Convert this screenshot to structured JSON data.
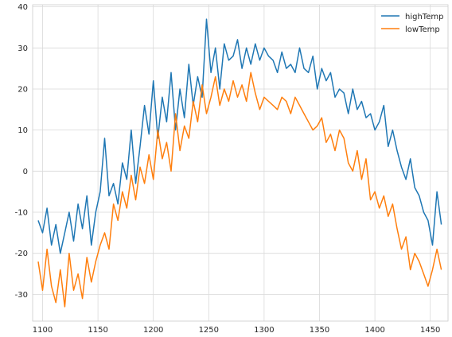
{
  "chart_data": {
    "type": "line",
    "xlim": [
      1091,
      1466
    ],
    "ylim": [
      -36.5,
      40.5
    ],
    "xticks": [
      1100,
      1150,
      1200,
      1250,
      1300,
      1350,
      1400,
      1450
    ],
    "yticks": [
      -30,
      -20,
      -10,
      0,
      10,
      20,
      30,
      40
    ],
    "grid": true,
    "legend_position": "top-right",
    "series": [
      {
        "name": "highTemp",
        "color": "#1f77b4",
        "x": [
          1096,
          1100,
          1104,
          1108,
          1112,
          1116,
          1120,
          1124,
          1128,
          1132,
          1136,
          1140,
          1144,
          1148,
          1152,
          1156,
          1160,
          1164,
          1168,
          1172,
          1176,
          1180,
          1184,
          1188,
          1192,
          1196,
          1200,
          1204,
          1208,
          1212,
          1216,
          1220,
          1224,
          1228,
          1232,
          1236,
          1240,
          1244,
          1248,
          1252,
          1256,
          1260,
          1264,
          1268,
          1272,
          1276,
          1280,
          1284,
          1288,
          1292,
          1296,
          1300,
          1304,
          1308,
          1312,
          1316,
          1320,
          1324,
          1328,
          1332,
          1336,
          1340,
          1344,
          1348,
          1352,
          1356,
          1360,
          1364,
          1368,
          1372,
          1376,
          1380,
          1384,
          1388,
          1392,
          1396,
          1400,
          1404,
          1408,
          1412,
          1416,
          1420,
          1424,
          1428,
          1432,
          1436,
          1440,
          1444,
          1448,
          1452,
          1456,
          1460
        ],
        "y": [
          -12,
          -15,
          -9,
          -18,
          -13,
          -20,
          -15,
          -10,
          -17,
          -8,
          -14,
          -6,
          -18,
          -10,
          -5,
          8,
          -6,
          -3,
          -8,
          2,
          -2,
          10,
          -3,
          6,
          16,
          9,
          22,
          8,
          18,
          12,
          24,
          10,
          20,
          13,
          26,
          16,
          23,
          18,
          37,
          24,
          30,
          20,
          31,
          27,
          28,
          32,
          25,
          30,
          26,
          31,
          27,
          30,
          28,
          27,
          24,
          29,
          25,
          26,
          24,
          30,
          25,
          24,
          28,
          20,
          25,
          22,
          24,
          18,
          20,
          19,
          14,
          20,
          15,
          17,
          13,
          14,
          10,
          12,
          16,
          6,
          10,
          5,
          1,
          -2,
          3,
          -4,
          -6,
          -10,
          -12,
          -18,
          -5,
          -13
        ]
      },
      {
        "name": "lowTemp",
        "color": "#ff7f0e",
        "x": [
          1096,
          1100,
          1104,
          1108,
          1112,
          1116,
          1120,
          1124,
          1128,
          1132,
          1136,
          1140,
          1144,
          1148,
          1152,
          1156,
          1160,
          1164,
          1168,
          1172,
          1176,
          1180,
          1184,
          1188,
          1192,
          1196,
          1200,
          1204,
          1208,
          1212,
          1216,
          1220,
          1224,
          1228,
          1232,
          1236,
          1240,
          1244,
          1248,
          1252,
          1256,
          1260,
          1264,
          1268,
          1272,
          1276,
          1280,
          1284,
          1288,
          1292,
          1296,
          1300,
          1304,
          1308,
          1312,
          1316,
          1320,
          1324,
          1328,
          1332,
          1336,
          1340,
          1344,
          1348,
          1352,
          1356,
          1360,
          1364,
          1368,
          1372,
          1376,
          1380,
          1384,
          1388,
          1392,
          1396,
          1400,
          1404,
          1408,
          1412,
          1416,
          1420,
          1424,
          1428,
          1432,
          1436,
          1440,
          1444,
          1448,
          1452,
          1456,
          1460
        ],
        "y": [
          -22,
          -29,
          -19,
          -28,
          -32,
          -24,
          -33,
          -20,
          -29,
          -25,
          -31,
          -21,
          -27,
          -22,
          -18,
          -15,
          -19,
          -8,
          -12,
          -5,
          -9,
          -1,
          -7,
          1,
          -3,
          4,
          -2,
          10,
          3,
          7,
          0,
          14,
          5,
          11,
          8,
          17,
          12,
          21,
          14,
          18,
          23,
          16,
          20,
          17,
          22,
          18,
          21,
          17,
          24,
          19,
          15,
          18,
          17,
          16,
          15,
          18,
          17,
          14,
          18,
          16,
          14,
          12,
          10,
          11,
          13,
          7,
          9,
          5,
          10,
          8,
          2,
          0,
          5,
          -2,
          3,
          -7,
          -5,
          -9,
          -6,
          -11,
          -8,
          -14,
          -19,
          -16,
          -24,
          -20,
          -22,
          -25,
          -28,
          -24,
          -19,
          -24
        ]
      }
    ]
  }
}
